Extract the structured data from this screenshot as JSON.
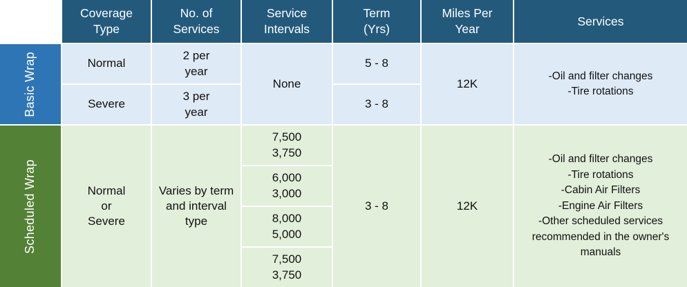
{
  "colors": {
    "header_bg": "#235A7C",
    "header_text": "#FFFFFF",
    "basic_sidebar_bg": "#2E75B6",
    "basic_cell_bg": "#DEEAF6",
    "scheduled_sidebar_bg": "#538135",
    "scheduled_cell_bg": "#E2EFDA",
    "body_text": "#111111"
  },
  "header": {
    "coverage_type": "Coverage\nType",
    "no_of_services": "No. of\nServices",
    "service_intervals": "Service\nIntervals",
    "term_yrs": "Term\n(Yrs)",
    "miles_per_year": "Miles Per\nYear",
    "services": "Services"
  },
  "basic": {
    "label": "Basic Wrap",
    "rows": [
      {
        "coverage": "Normal",
        "num_services": "2 per\nyear",
        "term": "5 - 8"
      },
      {
        "coverage": "Severe",
        "num_services": "3 per\nyear",
        "term": "3 - 8"
      }
    ],
    "service_intervals": "None",
    "miles_per_year": "12K",
    "services": "-Oil and filter changes\n-Tire rotations"
  },
  "scheduled": {
    "label": "Scheduled Wrap",
    "coverage": "Normal\nor\nSevere",
    "num_services": "Varies by term\nand interval\ntype",
    "intervals": [
      "7,500\n3,750",
      "6,000\n3,000",
      "8,000\n5,000",
      "7,500\n3,750"
    ],
    "term": "3 - 8",
    "miles_per_year": "12K",
    "services": "-Oil and filter changes\n-Tire rotations\n-Cabin Air Filters\n-Engine Air Filters\n-Other scheduled services recommended in the owner's manuals"
  }
}
